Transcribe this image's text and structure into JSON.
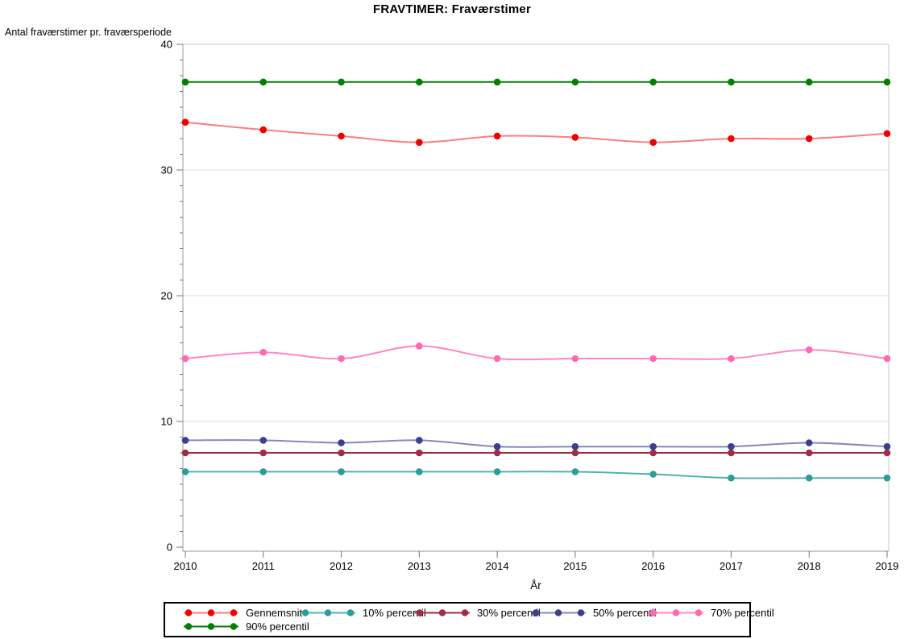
{
  "page": {
    "background": "#ffffff"
  },
  "chart_data": {
    "type": "line",
    "title": "FRAVTIMER: Fraværstimer",
    "ylabel": "Antal fraværstimer pr. fraværsperiode",
    "xlabel": "År",
    "categories": [
      "2010",
      "2011",
      "2012",
      "2013",
      "2014",
      "2015",
      "2016",
      "2017",
      "2018",
      "2019"
    ],
    "yticks": [
      0,
      10,
      20,
      30,
      40
    ],
    "ylim": [
      0,
      40
    ],
    "grid": true,
    "legend_position": "bottom",
    "marker": "filled-circle",
    "series": [
      {
        "name": "Gennemsnit",
        "color": "#f10000",
        "line_alpha": 0.5,
        "values": [
          33.8,
          33.2,
          32.7,
          32.2,
          32.7,
          32.6,
          32.2,
          32.5,
          32.5,
          32.9
        ]
      },
      {
        "name": "10% percentil",
        "color": "#2a9e99",
        "line_alpha": 0.8,
        "values": [
          6.0,
          6.0,
          6.0,
          6.0,
          6.0,
          6.0,
          5.8,
          5.5,
          5.5,
          5.5
        ]
      },
      {
        "name": "30% percentil",
        "color": "#a12c45",
        "line_alpha": 1,
        "values": [
          7.5,
          7.5,
          7.5,
          7.5,
          7.5,
          7.5,
          7.5,
          7.5,
          7.5,
          7.5
        ]
      },
      {
        "name": "50% percentil",
        "color": "#3d3d94",
        "line_alpha": 0.62,
        "values": [
          8.5,
          8.5,
          8.3,
          8.5,
          8.0,
          8.0,
          8.0,
          8.0,
          8.3,
          8.0
        ]
      },
      {
        "name": "70% percentil",
        "color": "#ff69b4",
        "line_alpha": 0.8,
        "values": [
          15.0,
          15.5,
          15.0,
          16.0,
          15.0,
          15.0,
          15.0,
          15.0,
          15.7,
          15.0
        ]
      },
      {
        "name": "90% percentil",
        "color": "#077d07",
        "line_alpha": 1,
        "values": [
          37.0,
          37.0,
          37.0,
          37.0,
          37.0,
          37.0,
          37.0,
          37.0,
          37.0,
          37.0
        ]
      }
    ],
    "axis_colors": {
      "frame": "#c9c9c9",
      "gridline": "#dedede",
      "axis_line": "#9a9a9a",
      "tick": "#777777",
      "label": "#000000"
    }
  }
}
